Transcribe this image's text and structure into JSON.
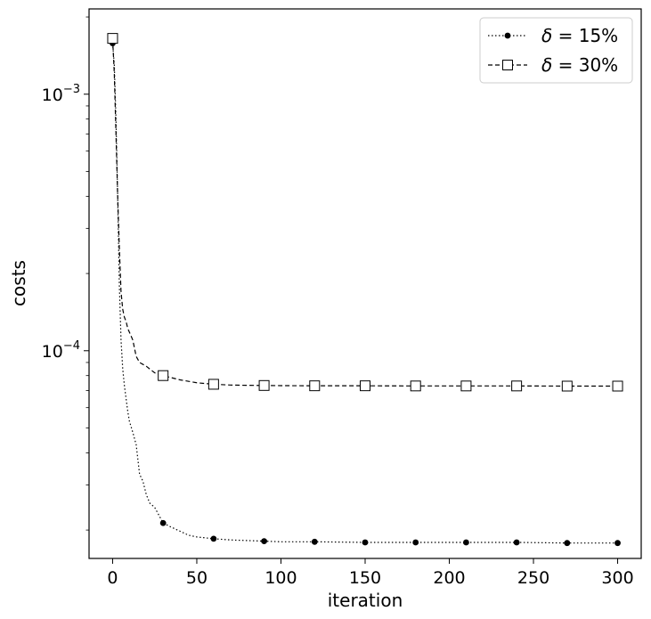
{
  "chart_data": {
    "type": "line",
    "title": "",
    "xlabel": "iteration",
    "ylabel": "costs",
    "xlim": [
      -14,
      314
    ],
    "ylim": [
      1.55e-05,
      0.00215
    ],
    "yscale": "log",
    "xticks": [
      {
        "value": 0,
        "label": "0"
      },
      {
        "value": 50,
        "label": "50"
      },
      {
        "value": 100,
        "label": "100"
      },
      {
        "value": 150,
        "label": "150"
      },
      {
        "value": 200,
        "label": "200"
      },
      {
        "value": 250,
        "label": "250"
      },
      {
        "value": 300,
        "label": "300"
      }
    ],
    "yticks": [
      {
        "value": 0.001,
        "base": "10",
        "exp": "−3"
      },
      {
        "value": 0.0001,
        "base": "10",
        "exp": "−4"
      }
    ],
    "grid": false,
    "legend_position": "top-right",
    "series": [
      {
        "name": "δ = 15%",
        "legend_symbol": "δ",
        "legend_rest": " = 15%",
        "linestyle": "dotted",
        "marker": "filled-circle",
        "color": "#000000",
        "x": [
          0,
          1,
          2,
          3,
          4,
          5,
          6,
          7,
          8,
          9,
          10,
          12,
          14,
          16,
          18,
          20,
          22,
          25,
          30,
          35,
          40,
          45,
          50,
          60,
          70,
          80,
          90,
          100,
          120,
          150,
          180,
          210,
          240,
          270,
          300
        ],
        "y": [
          0.00158,
          0.0013,
          0.0008,
          0.0004,
          0.00018,
          0.00011,
          8.5e-05,
          7.3e-05,
          6.5e-05,
          5.8e-05,
          5.3e-05,
          4.8e-05,
          4.3e-05,
          3.3e-05,
          3.1e-05,
          2.75e-05,
          2.55e-05,
          2.45e-05,
          2.13e-05,
          2.05e-05,
          1.98e-05,
          1.91e-05,
          1.88e-05,
          1.85e-05,
          1.83e-05,
          1.82e-05,
          1.81e-05,
          1.8e-05,
          1.8e-05,
          1.79e-05,
          1.79e-05,
          1.79e-05,
          1.79e-05,
          1.78e-05,
          1.78e-05
        ],
        "marker_x": [
          0,
          30,
          60,
          90,
          120,
          150,
          180,
          210,
          240,
          270,
          300
        ]
      },
      {
        "name": "δ = 30%",
        "legend_symbol": "δ",
        "legend_rest": " = 30%",
        "linestyle": "dashed",
        "marker": "open-square",
        "color": "#000000",
        "x": [
          0,
          1,
          2,
          3,
          4,
          5,
          6,
          7,
          8,
          9,
          10,
          12,
          14,
          16,
          20,
          25,
          30,
          40,
          50,
          60,
          70,
          80,
          90,
          100,
          120,
          150,
          180,
          210,
          240,
          270,
          300
        ],
        "y": [
          0.00165,
          0.0012,
          0.0007,
          0.0004,
          0.00025,
          0.00017,
          0.000145,
          0.000135,
          0.00013,
          0.000122,
          0.000118,
          0.00011,
          9.5e-05,
          9e-05,
          8.7e-05,
          8.2e-05,
          8e-05,
          7.7e-05,
          7.5e-05,
          7.4e-05,
          7.35e-05,
          7.33e-05,
          7.32e-05,
          7.31e-05,
          7.3e-05,
          7.3e-05,
          7.29e-05,
          7.29e-05,
          7.29e-05,
          7.28e-05,
          7.28e-05
        ],
        "marker_x": [
          0,
          30,
          60,
          90,
          120,
          150,
          180,
          210,
          240,
          270,
          300
        ]
      }
    ]
  }
}
